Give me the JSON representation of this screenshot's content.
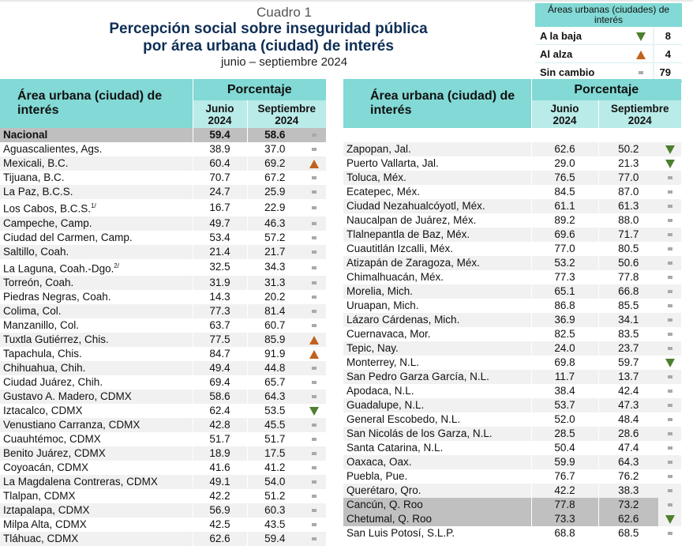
{
  "header": {
    "label": "Cuadro 1",
    "title_line1": "Percepción social sobre inseguridad pública",
    "title_line2": "por área urbana (ciudad) de interés",
    "period": "junio – septiembre 2024"
  },
  "summary": {
    "title": "Áreas urbanas (ciudades) de interés",
    "rows": [
      {
        "label": "A la baja",
        "icon": "down-triangle",
        "value": "8"
      },
      {
        "label": "Al alza",
        "icon": "up-triangle",
        "value": "4"
      },
      {
        "label": "Sin cambio",
        "icon": "dash",
        "value": "79"
      }
    ]
  },
  "colors": {
    "header_teal": "#82d9d5",
    "subheader_teal": "#b9ebe8",
    "up": "#c0621c",
    "down": "#4e7f2e",
    "title_navy": "#0e2e55"
  },
  "columns": {
    "left_area": "Área urbana (ciudad) de interés",
    "right_area": "Área urbana (ciudad) de interés",
    "percent": "Porcentaje",
    "junio": "Junio 2024",
    "junio_l1": "Junio",
    "sept_l1": "Septiembre",
    "year": "2024"
  },
  "left_rows": [
    {
      "name": "Nacional",
      "jun": "59.4",
      "sep": "58.6",
      "trend": "dash"
    },
    {
      "name": "Aguascalientes, Ags.",
      "jun": "38.9",
      "sep": "37.0",
      "trend": "dash"
    },
    {
      "name": "Mexicali, B.C.",
      "jun": "60.4",
      "sep": "69.2",
      "trend": "up"
    },
    {
      "name": "Tijuana, B.C.",
      "jun": "70.7",
      "sep": "67.2",
      "trend": "dash"
    },
    {
      "name": "La Paz, B.C.S.",
      "jun": "24.7",
      "sep": "25.9",
      "trend": "dash"
    },
    {
      "name": "Los Cabos, B.C.S.",
      "note": "1/",
      "jun": "16.7",
      "sep": "22.9",
      "trend": "dash"
    },
    {
      "name": "Campeche, Camp.",
      "jun": "49.7",
      "sep": "46.3",
      "trend": "dash"
    },
    {
      "name": "Ciudad del Carmen, Camp.",
      "jun": "53.4",
      "sep": "57.2",
      "trend": "dash"
    },
    {
      "name": "Saltillo, Coah.",
      "jun": "21.4",
      "sep": "21.7",
      "trend": "dash"
    },
    {
      "name": "La Laguna, Coah.-Dgo.",
      "note": "2/",
      "jun": "32.5",
      "sep": "34.3",
      "trend": "dash"
    },
    {
      "name": "Torreón, Coah.",
      "jun": "31.9",
      "sep": "31.3",
      "trend": "dash"
    },
    {
      "name": "Piedras Negras, Coah.",
      "jun": "14.3",
      "sep": "20.2",
      "trend": "dash"
    },
    {
      "name": "Colima, Col.",
      "jun": "77.3",
      "sep": "81.4",
      "trend": "dash"
    },
    {
      "name": "Manzanillo, Col.",
      "jun": "63.7",
      "sep": "60.7",
      "trend": "dash"
    },
    {
      "name": "Tuxtla Gutiérrez, Chis.",
      "jun": "77.5",
      "sep": "85.9",
      "trend": "up"
    },
    {
      "name": "Tapachula, Chis.",
      "jun": "84.7",
      "sep": "91.9",
      "trend": "up"
    },
    {
      "name": "Chihuahua, Chih.",
      "jun": "49.4",
      "sep": "44.8",
      "trend": "dash"
    },
    {
      "name": "Ciudad Juárez, Chih.",
      "jun": "69.4",
      "sep": "65.7",
      "trend": "dash"
    },
    {
      "name": "Gustavo A. Madero, CDMX",
      "jun": "58.6",
      "sep": "64.3",
      "trend": "dash"
    },
    {
      "name": "Iztacalco, CDMX",
      "jun": "62.4",
      "sep": "53.5",
      "trend": "down"
    },
    {
      "name": "Venustiano Carranza, CDMX",
      "jun": "42.8",
      "sep": "45.5",
      "trend": "dash"
    },
    {
      "name": "Cuauhtémoc, CDMX",
      "jun": "51.7",
      "sep": "51.7",
      "trend": "dash"
    },
    {
      "name": "Benito Juárez, CDMX",
      "jun": "18.9",
      "sep": "17.5",
      "trend": "dash"
    },
    {
      "name": "Coyoacán, CDMX",
      "jun": "41.6",
      "sep": "41.2",
      "trend": "dash"
    },
    {
      "name": "La Magdalena Contreras, CDMX",
      "jun": "49.1",
      "sep": "54.0",
      "trend": "dash"
    },
    {
      "name": "Tlalpan, CDMX",
      "jun": "42.2",
      "sep": "51.2",
      "trend": "dash"
    },
    {
      "name": "Iztapalapa, CDMX",
      "jun": "56.9",
      "sep": "60.3",
      "trend": "dash"
    },
    {
      "name": "Milpa Alta, CDMX",
      "jun": "42.5",
      "sep": "43.5",
      "trend": "dash"
    },
    {
      "name": "Tláhuac, CDMX",
      "jun": "62.6",
      "sep": "59.4",
      "trend": "dash"
    }
  ],
  "right_rows": [
    {
      "name": "Zapopan, Jal.",
      "jun": "62.6",
      "sep": "50.2",
      "trend": "down"
    },
    {
      "name": "Puerto Vallarta, Jal.",
      "jun": "29.0",
      "sep": "21.3",
      "trend": "down"
    },
    {
      "name": "Toluca, Méx.",
      "jun": "76.5",
      "sep": "77.0",
      "trend": "dash"
    },
    {
      "name": "Ecatepec, Méx.",
      "jun": "84.5",
      "sep": "87.0",
      "trend": "dash"
    },
    {
      "name": "Ciudad Nezahualcóyotl, Méx.",
      "jun": "61.1",
      "sep": "61.3",
      "trend": "dash"
    },
    {
      "name": "Naucalpan de Juárez, Méx.",
      "jun": "89.2",
      "sep": "88.0",
      "trend": "dash"
    },
    {
      "name": "Tlalnepantla de Baz, Méx.",
      "jun": "69.6",
      "sep": "71.7",
      "trend": "dash"
    },
    {
      "name": "Cuautitlán Izcalli, Méx.",
      "jun": "77.0",
      "sep": "80.5",
      "trend": "dash"
    },
    {
      "name": "Atizapán de Zaragoza, Méx.",
      "jun": "53.2",
      "sep": "50.6",
      "trend": "dash"
    },
    {
      "name": "Chimalhuacán, Méx.",
      "jun": "77.3",
      "sep": "77.8",
      "trend": "dash"
    },
    {
      "name": "Morelia, Mich.",
      "jun": "65.1",
      "sep": "66.8",
      "trend": "dash"
    },
    {
      "name": "Uruapan, Mich.",
      "jun": "86.8",
      "sep": "85.5",
      "trend": "dash"
    },
    {
      "name": "Lázaro Cárdenas, Mich.",
      "jun": "36.9",
      "sep": "34.1",
      "trend": "dash"
    },
    {
      "name": "Cuernavaca, Mor.",
      "jun": "82.5",
      "sep": "83.5",
      "trend": "dash"
    },
    {
      "name": "Tepic, Nay.",
      "jun": "24.0",
      "sep": "23.7",
      "trend": "dash"
    },
    {
      "name": "Monterrey, N.L.",
      "jun": "69.8",
      "sep": "59.7",
      "trend": "down"
    },
    {
      "name": "San Pedro Garza García, N.L.",
      "jun": "11.7",
      "sep": "13.7",
      "trend": "dash"
    },
    {
      "name": "Apodaca, N.L.",
      "jun": "38.4",
      "sep": "42.4",
      "trend": "dash"
    },
    {
      "name": "Guadalupe, N.L.",
      "jun": "53.7",
      "sep": "47.3",
      "trend": "dash"
    },
    {
      "name": "General Escobedo, N.L.",
      "jun": "52.0",
      "sep": "48.4",
      "trend": "dash"
    },
    {
      "name": "San Nicolás de los Garza, N.L.",
      "jun": "28.5",
      "sep": "28.6",
      "trend": "dash"
    },
    {
      "name": "Santa Catarina, N.L.",
      "jun": "50.4",
      "sep": "47.4",
      "trend": "dash"
    },
    {
      "name": "Oaxaca, Oax.",
      "jun": "59.9",
      "sep": "64.3",
      "trend": "dash"
    },
    {
      "name": "Puebla, Pue.",
      "jun": "76.7",
      "sep": "76.2",
      "trend": "dash"
    },
    {
      "name": "Querétaro, Qro.",
      "jun": "42.2",
      "sep": "38.3",
      "trend": "dash"
    },
    {
      "name": "Cancún, Q. Roo",
      "jun": "77.8",
      "sep": "73.2",
      "trend": "dash",
      "highlight": true
    },
    {
      "name": "Chetumal, Q. Roo",
      "jun": "73.3",
      "sep": "62.6",
      "trend": "down",
      "highlight": true
    },
    {
      "name": "San Luis Potosí, S.L.P.",
      "jun": "68.8",
      "sep": "68.5",
      "trend": "dash"
    }
  ]
}
